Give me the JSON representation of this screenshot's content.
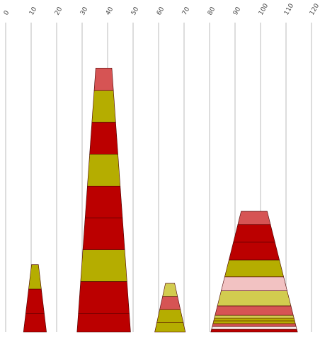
{
  "chart_data": {
    "type": "stacked-cone",
    "title": "",
    "xlabel": "",
    "ylabel": "",
    "xlim": [
      0,
      120
    ],
    "xticks": [
      "0",
      "10",
      "20",
      "30",
      "40",
      "50",
      "60",
      "70",
      "80",
      "90",
      "100",
      "110",
      "120"
    ],
    "grid": true,
    "legend": "none",
    "palette": {
      "red": "#bb0000",
      "olive": "#b5ad00",
      "coral": "#d65454",
      "khaki": "#d2cc4f",
      "pink": "#f2c2c2",
      "cream": "#f7eaea"
    },
    "cones": [
      {
        "center": 11.5,
        "base_width": 9,
        "segments": [
          {
            "value": 1,
            "color": "#bb0000"
          },
          {
            "value": 1.3,
            "color": "#bb0000"
          },
          {
            "value": 1.3,
            "color": "#b5ad00"
          }
        ]
      },
      {
        "center": 38.5,
        "base_width": 21,
        "segments": [
          {
            "value": 1,
            "color": "#bb0000"
          },
          {
            "value": 1.7,
            "color": "#bb0000"
          },
          {
            "value": 1.7,
            "color": "#b5ad00"
          },
          {
            "value": 1.7,
            "color": "#bb0000"
          },
          {
            "value": 1.7,
            "color": "#bb0000"
          },
          {
            "value": 1.7,
            "color": "#b5ad00"
          },
          {
            "value": 1.7,
            "color": "#bb0000"
          },
          {
            "value": 1.7,
            "color": "#b5ad00"
          },
          {
            "value": 1.2,
            "color": "#d65454"
          }
        ]
      },
      {
        "center": 64.5,
        "base_width": 12,
        "segments": [
          {
            "value": 0.5,
            "color": "#b5ad00"
          },
          {
            "value": 0.7,
            "color": "#b5ad00"
          },
          {
            "value": 0.7,
            "color": "#d65454"
          },
          {
            "value": 0.7,
            "color": "#d2cc4f"
          }
        ]
      },
      {
        "center": 97.5,
        "base_width": 34,
        "segments": [
          {
            "value": 0.15,
            "color": "#bb0000"
          },
          {
            "value": 0.15,
            "color": "#f7eaea"
          },
          {
            "value": 0.15,
            "color": "#d65454"
          },
          {
            "value": 0.15,
            "color": "#b5ad00"
          },
          {
            "value": 0.15,
            "color": "#b5ad00"
          },
          {
            "value": 0.15,
            "color": "#d2cc4f"
          },
          {
            "value": 0.5,
            "color": "#d65454"
          },
          {
            "value": 0.8,
            "color": "#d2cc4f"
          },
          {
            "value": 0.75,
            "color": "#f2c2c2"
          },
          {
            "value": 0.9,
            "color": "#b5ad00"
          },
          {
            "value": 0.95,
            "color": "#bb0000"
          },
          {
            "value": 0.95,
            "color": "#bb0000"
          },
          {
            "value": 0.7,
            "color": "#d65454"
          }
        ]
      }
    ]
  }
}
